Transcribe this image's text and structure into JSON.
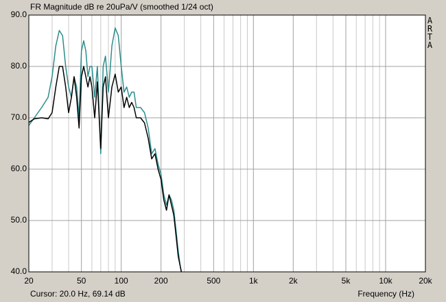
{
  "chart_data": {
    "type": "line",
    "title": "FR Magnitude dB re 20uPa/V (smoothed 1/24 oct)",
    "watermark": "ARTA",
    "cursor_text": "Cursor: 20.0 Hz, 69.14 dB",
    "x_label": "Frequency (Hz)",
    "log_x": true,
    "grid": true,
    "xlim": [
      20,
      20000
    ],
    "ylim": [
      40,
      90
    ],
    "xticks": [
      20,
      50,
      100,
      200,
      500,
      {
        "value": 1000,
        "label": "1k"
      },
      {
        "value": 2000,
        "label": "2k"
      },
      {
        "value": 5000,
        "label": "5k"
      },
      {
        "value": 10000,
        "label": "10k"
      },
      {
        "value": 20000,
        "label": "20k"
      }
    ],
    "xgrid_minor": [
      30,
      40,
      60,
      70,
      80,
      90,
      300,
      400,
      600,
      700,
      800,
      900,
      3000,
      4000,
      6000,
      7000,
      8000,
      9000
    ],
    "yticks": [
      {
        "value": 40,
        "label": "40.0"
      },
      {
        "value": 50,
        "label": "50.0"
      },
      {
        "value": 60,
        "label": "60.0"
      },
      {
        "value": 70,
        "label": "70.0"
      },
      {
        "value": 80,
        "label": "80.0"
      },
      {
        "value": 90,
        "label": "90.0"
      }
    ],
    "x": [
      20,
      22,
      25,
      28,
      30,
      32,
      34,
      36,
      38,
      40,
      42,
      44,
      46,
      48,
      50,
      52,
      54,
      56,
      58,
      60,
      63,
      66,
      70,
      73,
      76,
      80,
      85,
      90,
      95,
      100,
      105,
      110,
      115,
      120,
      125,
      130,
      135,
      140,
      150,
      160,
      170,
      180,
      190,
      200,
      210,
      220,
      230,
      240,
      250,
      260,
      270,
      280,
      285
    ],
    "series": [
      {
        "color": "#2a8c8c",
        "values": [
          68.5,
          70,
          72,
          74,
          78,
          84,
          87,
          86,
          80,
          76,
          74,
          78,
          76,
          70,
          83,
          85,
          83,
          78,
          80,
          80,
          74,
          80,
          63,
          80,
          82,
          75,
          84,
          87.5,
          86,
          80,
          75,
          76,
          74,
          75,
          75,
          72,
          72,
          72,
          71,
          68,
          63,
          64,
          61,
          59,
          55,
          53,
          55,
          54,
          52,
          48,
          44,
          41,
          40
        ]
      },
      {
        "color": "#000000",
        "values": [
          69.1,
          69.8,
          70,
          69.8,
          71,
          76,
          80,
          80,
          76,
          71,
          74,
          78,
          74,
          68,
          78,
          80,
          78,
          76,
          78,
          76,
          70,
          77,
          64,
          76,
          78,
          70,
          76,
          78.5,
          75,
          76,
          72,
          74,
          72,
          73,
          72,
          70,
          70,
          70,
          69,
          66,
          62,
          63,
          60,
          58,
          54,
          52,
          55,
          53,
          51,
          47,
          43,
          41,
          40
        ]
      }
    ]
  }
}
